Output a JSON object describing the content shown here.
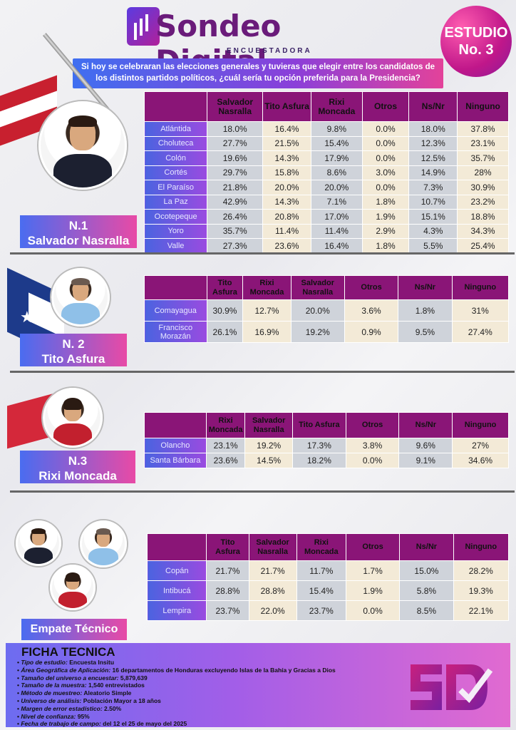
{
  "header": {
    "logo_text": "Sondeo Digital",
    "logo_sub": "ENCUESTADORA",
    "badge_line1": "ESTUDIO",
    "badge_line2": "No. 3",
    "question": "Si hoy se celebraran las elecciones generales y tuvieras que elegir entre los candidatos de los distintos partidos políticos, ¿cuál sería tu opción preferida para la Presidencia?"
  },
  "section1": {
    "label_line1": "N.1",
    "label_line2": "Salvador Nasralla",
    "headers": [
      "Salvador Nasralla",
      "Tito Asfura",
      "Rixi Moncada",
      "Otros",
      "Ns/Nr",
      "Ninguno"
    ],
    "rows": [
      {
        "name": "Atlántida",
        "values": [
          "18.0%",
          "16.4%",
          "9.8%",
          "0.0%",
          "18.0%",
          "37.8%"
        ]
      },
      {
        "name": "Choluteca",
        "values": [
          "27.7%",
          "21.5%",
          "15.4%",
          "0.0%",
          "12.3%",
          "23.1%"
        ]
      },
      {
        "name": "Colón",
        "values": [
          "19.6%",
          "14.3%",
          "17.9%",
          "0.0%",
          "12.5%",
          "35.7%"
        ]
      },
      {
        "name": "Cortés",
        "values": [
          "29.7%",
          "15.8%",
          "8.6%",
          "3.0%",
          "14.9%",
          "28%"
        ]
      },
      {
        "name": "El Paraíso",
        "values": [
          "21.8%",
          "20.0%",
          "20.0%",
          "0.0%",
          "7.3%",
          "30.9%"
        ]
      },
      {
        "name": "La Paz",
        "values": [
          "42.9%",
          "14.3%",
          "7.1%",
          "1.8%",
          "10.7%",
          "23.2%"
        ]
      },
      {
        "name": "Ocotepeque",
        "values": [
          "26.4%",
          "20.8%",
          "17.0%",
          "1.9%",
          "15.1%",
          "18.8%"
        ]
      },
      {
        "name": "Yoro",
        "values": [
          "35.7%",
          "11.4%",
          "11.4%",
          "2.9%",
          "4.3%",
          "34.3%"
        ]
      },
      {
        "name": "Valle",
        "values": [
          "27.3%",
          "23.6%",
          "16.4%",
          "1.8%",
          "5.5%",
          "25.4%"
        ]
      }
    ]
  },
  "section2": {
    "label_line1": "N. 2",
    "label_line2": "Tito Asfura",
    "headers": [
      "Tito Asfura",
      "Rixi Moncada",
      "Salvador Nasralla",
      "Otros",
      "Ns/Nr",
      "Ninguno"
    ],
    "rows": [
      {
        "name": "Comayagua",
        "values": [
          "30.9%",
          "12.7%",
          "20.0%",
          "3.6%",
          "1.8%",
          "31%"
        ]
      },
      {
        "name": "Francisco Morazán",
        "values": [
          "26.1%",
          "16.9%",
          "19.2%",
          "0.9%",
          "9.5%",
          "27.4%"
        ]
      }
    ]
  },
  "section3": {
    "label_line1": "N.3",
    "label_line2": "Rixi Moncada",
    "headers": [
      "Rixi Moncada",
      "Salvador Nasralla",
      "Tito Asfura",
      "Otros",
      "Ns/Nr",
      "Ninguno"
    ],
    "rows": [
      {
        "name": "Olancho",
        "values": [
          "23.1%",
          "19.2%",
          "17.3%",
          "3.8%",
          "9.6%",
          "27%"
        ]
      },
      {
        "name": "Santa Bárbara",
        "values": [
          "23.6%",
          "14.5%",
          "18.2%",
          "0.0%",
          "9.1%",
          "34.6%"
        ]
      }
    ]
  },
  "section4": {
    "label": "Empate Técnico",
    "headers": [
      "Tito Asfura",
      "Salvador Nasralla",
      "Rixi Moncada",
      "Otros",
      "Ns/Nr",
      "Ninguno"
    ],
    "rows": [
      {
        "name": "Copán",
        "values": [
          "21.7%",
          "21.7%",
          "11.7%",
          "1.7%",
          "15.0%",
          "28.2%"
        ]
      },
      {
        "name": "Intibucá",
        "values": [
          "28.8%",
          "28.8%",
          "15.4%",
          "1.9%",
          "5.8%",
          "19.3%"
        ]
      },
      {
        "name": "Lempira",
        "values": [
          "23.7%",
          "22.0%",
          "23.7%",
          "0.0%",
          "8.5%",
          "22.1%"
        ]
      }
    ]
  },
  "ficha": {
    "title": "FICHA TECNICA",
    "items": [
      {
        "k": "Tipo de estudio:",
        "v": "Encuesta Insitu"
      },
      {
        "k": "Área Geográfica de Aplicación:",
        "v": "16 departamentos de Honduras excluyendo Islas de la Bahía y Gracias a Dios"
      },
      {
        "k": "Tamaño del universo a encuestar:",
        "v": "5,879,639"
      },
      {
        "k": "Tamaño de la muestra:",
        "v": "1,540 entrevistados"
      },
      {
        "k": "Método de muestreo:",
        "v": "Aleatorio Simple"
      },
      {
        "k": "Universo de análisis:",
        "v": "Población Mayor a 18 años"
      },
      {
        "k": "Margen de error estadístico:",
        "v": "2.50%"
      },
      {
        "k": "Nivel de confianza:",
        "v": "95%"
      },
      {
        "k": "Fecha de trabajo de campo:",
        "v": "del 12 el 25 de mayo del 2025"
      }
    ]
  },
  "colors": {
    "header_purple": "#8a1577",
    "row_blue": "#4b63e0",
    "cell_gray": "#cfd3da",
    "cell_cream": "#f3ead7"
  }
}
